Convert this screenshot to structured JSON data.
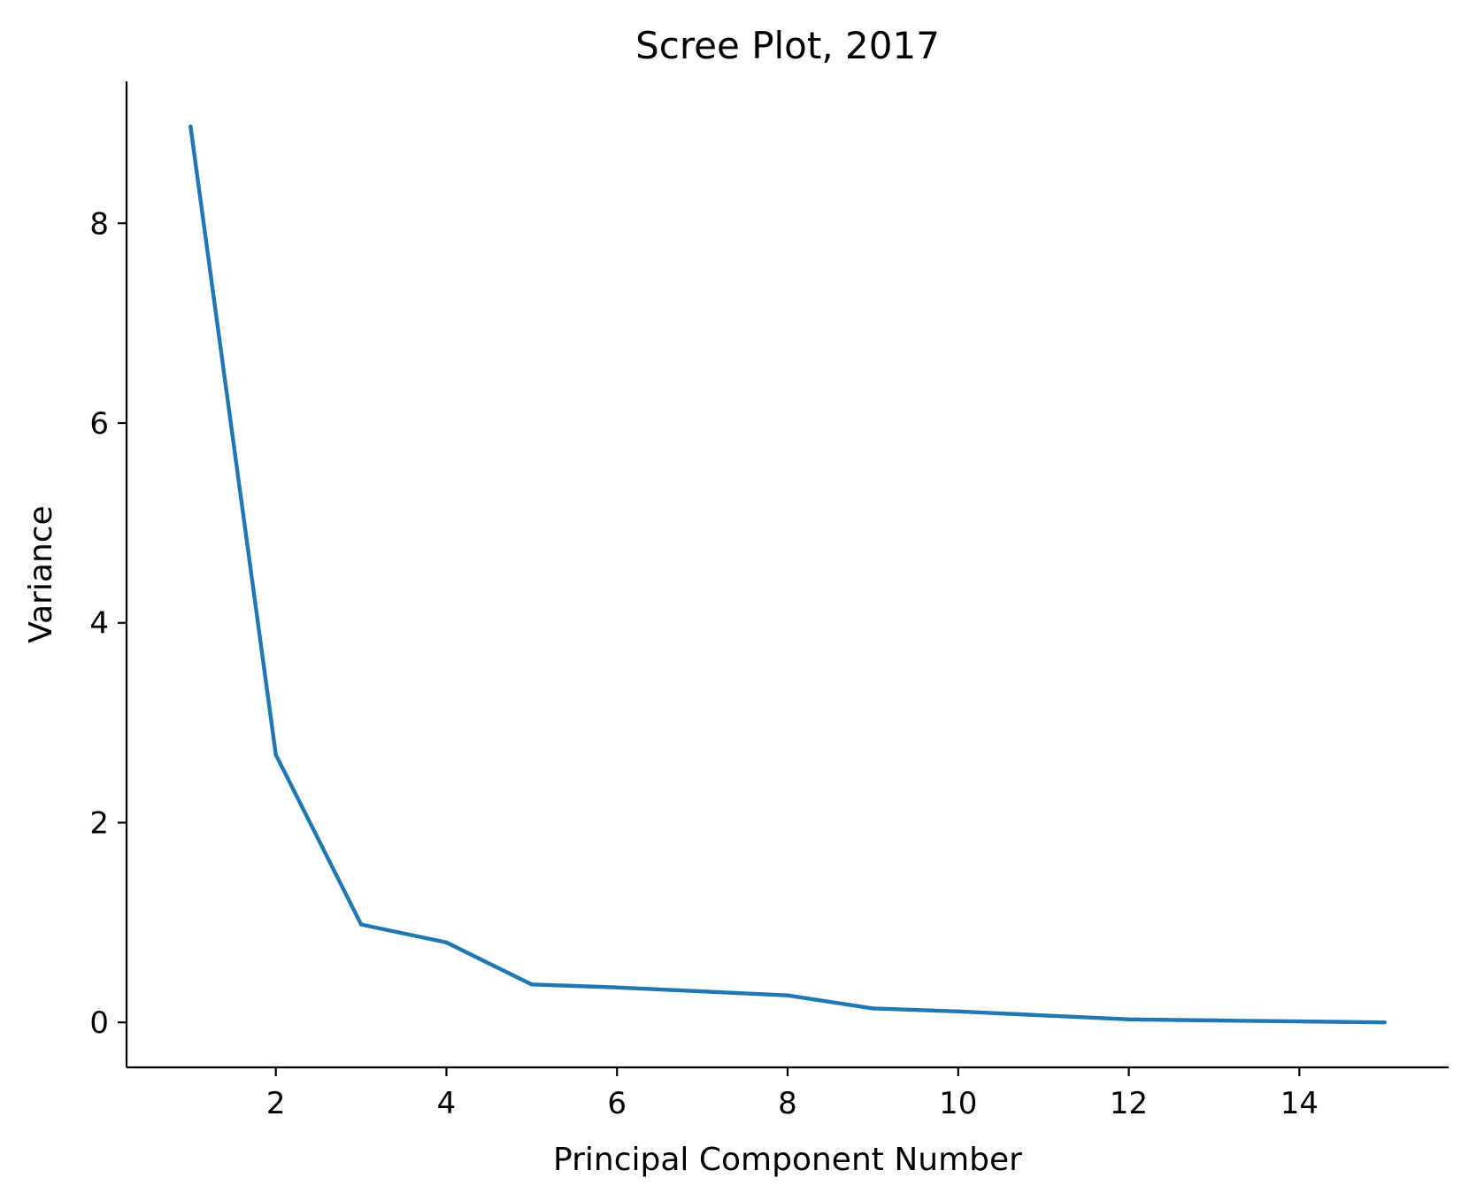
{
  "chart_data": {
    "type": "line",
    "title": "Scree Plot, 2017",
    "xlabel": "Principal Component Number",
    "ylabel": "Variance",
    "x": [
      1,
      2,
      3,
      4,
      5,
      6,
      7,
      8,
      9,
      10,
      11,
      12,
      13,
      14,
      15
    ],
    "series": [
      {
        "values": [
          8.97,
          2.68,
          0.98,
          0.8,
          0.38,
          0.35,
          0.31,
          0.27,
          0.14,
          0.11,
          0.07,
          0.03,
          0.02,
          0.01,
          0.0
        ]
      }
    ],
    "xlim": [
      0.25,
      15.75
    ],
    "ylim": [
      -0.45,
      9.42
    ],
    "xticks": [
      2,
      4,
      6,
      8,
      10,
      12,
      14
    ],
    "yticks": [
      0,
      2,
      4,
      6,
      8
    ],
    "grid": false,
    "line_color": "#1f77b4"
  }
}
